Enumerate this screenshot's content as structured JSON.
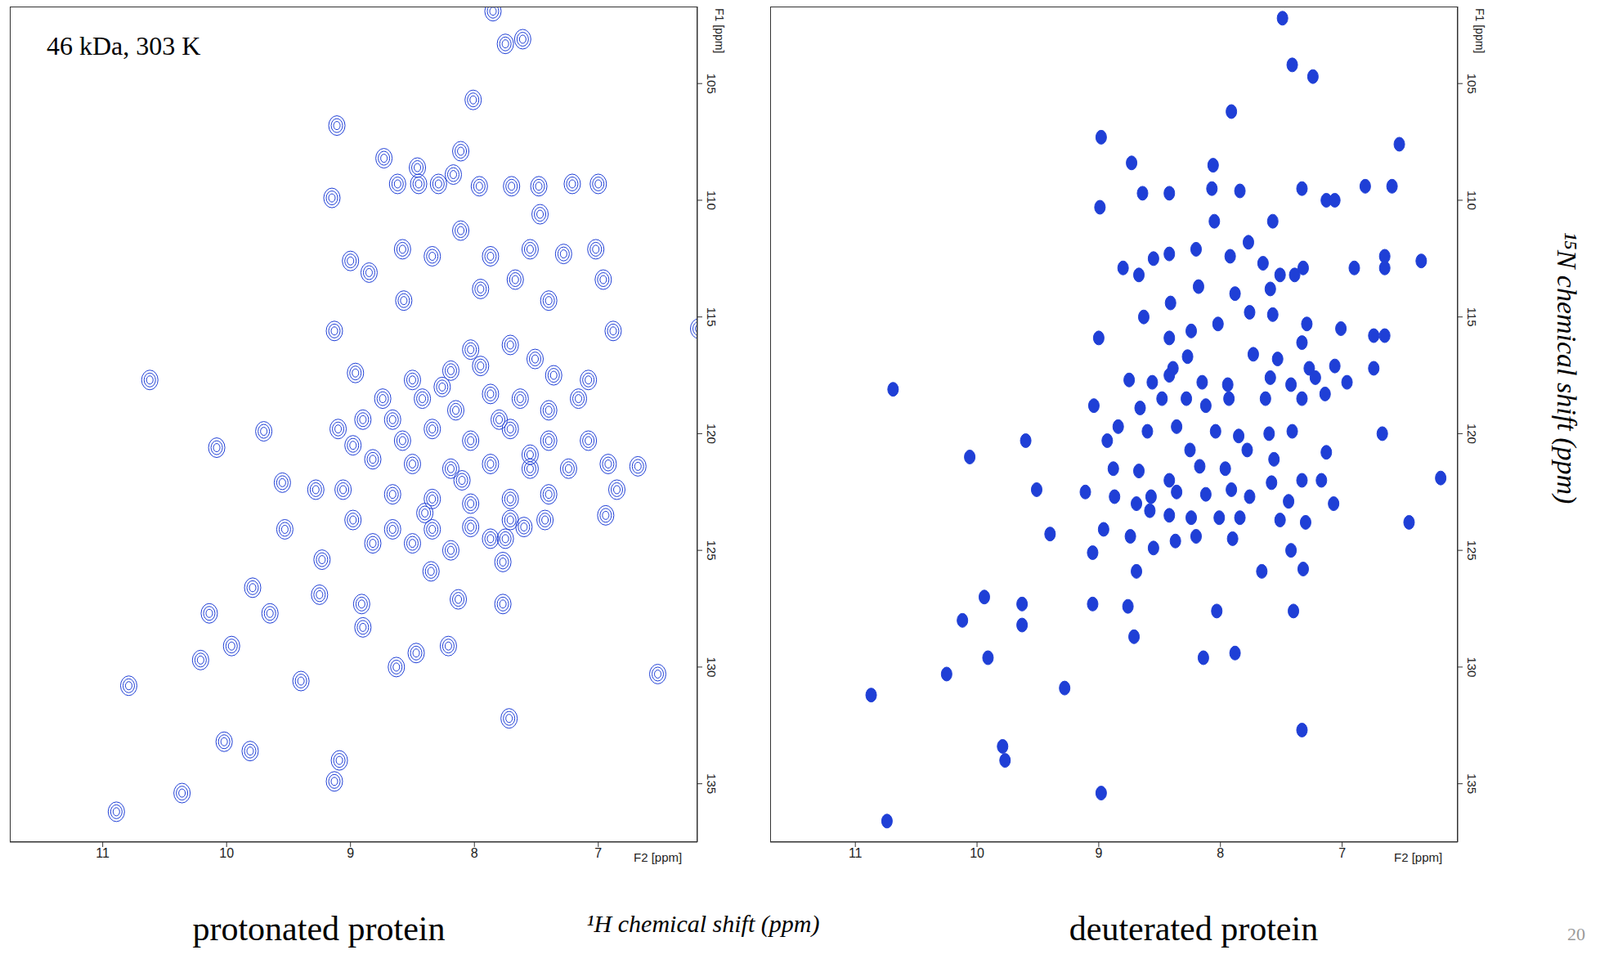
{
  "figure": {
    "xlabel": "¹H chemical shift (ppm)",
    "ylabel": "¹⁵N chemical shift (ppm)",
    "page_number": 20
  },
  "chart_data": [
    {
      "type": "scatter",
      "title": "protonated protein",
      "annotation": "46 kDa, 303 K",
      "xlabel": "F2 [ppm]",
      "ylabel": "F1 [ppm]",
      "color": "#1f3fd6",
      "marker": "contour",
      "xlim": [
        11.75,
        6.2
      ],
      "ylim": [
        137.5,
        101.7
      ],
      "xticks": [
        11,
        10,
        9,
        8,
        7
      ],
      "yticks": [
        105,
        110,
        115,
        120,
        125,
        130,
        135
      ],
      "x": [
        7.85,
        7.75,
        7.61,
        8.01,
        9.11,
        8.11,
        8.73,
        8.46,
        8.17,
        9.15,
        8.62,
        8.45,
        8.29,
        7.96,
        7.7,
        7.48,
        7.21,
        7.0,
        7.47,
        8.11,
        9.0,
        8.85,
        8.58,
        8.34,
        7.87,
        7.55,
        7.28,
        7.02,
        8.57,
        7.95,
        7.67,
        7.4,
        6.96,
        6.19,
        9.13,
        6.88,
        10.62,
        8.96,
        9.1,
        9.7,
        10.08,
        6.68,
        6.85,
        9.28,
        9.55,
        9.53,
        9.23,
        8.35,
        7.77,
        6.94,
        7.75,
        9.79,
        9.65,
        9.25,
        10.14,
        8.91,
        8.9,
        8.13,
        7.77,
        10.21,
        9.96,
        8.47,
        8.21,
        8.63,
        9.4,
        10.79,
        6.52,
        7.72,
        10.02,
        9.81,
        9.09,
        10.36,
        10.89,
        9.13,
        8.5,
        8.19,
        8.03,
        7.71,
        7.51,
        7.36,
        7.08,
        8.42,
        8.15,
        7.87,
        7.63,
        7.4,
        7.16,
        8.66,
        8.34,
        8.03,
        7.71,
        7.4,
        7.08,
        8.98,
        8.82,
        8.5,
        8.19,
        7.87,
        7.55,
        7.24,
        6.92,
        9.06,
        8.66,
        8.34,
        8.03,
        7.71,
        7.4,
        8.98,
        8.66,
        8.34,
        8.03,
        7.71,
        7.43,
        8.82,
        8.5,
        8.19,
        7.87,
        8.74,
        8.58,
        8.26,
        7.95,
        7.55,
        8.1,
        8.4,
        7.8,
        8.9,
        7.6
      ],
      "values": [
        101.9,
        103.3,
        103.1,
        105.7,
        106.8,
        107.9,
        108.2,
        108.6,
        108.9,
        109.9,
        109.3,
        109.3,
        109.3,
        109.4,
        109.4,
        109.4,
        109.3,
        109.3,
        110.6,
        111.3,
        112.6,
        113.1,
        112.1,
        112.4,
        112.4,
        112.1,
        112.3,
        112.1,
        114.3,
        113.8,
        113.4,
        114.3,
        113.4,
        115.5,
        115.6,
        115.6,
        117.7,
        117.4,
        119.8,
        119.9,
        120.6,
        121.4,
        122.4,
        122.4,
        122.1,
        124.1,
        125.4,
        125.9,
        125.5,
        123.5,
        124.5,
        126.6,
        127.7,
        126.9,
        127.7,
        127.3,
        128.3,
        127.1,
        127.3,
        129.7,
        129.1,
        129.4,
        129.1,
        130.0,
        130.6,
        130.8,
        130.3,
        132.2,
        133.2,
        133.6,
        134.0,
        135.4,
        136.2,
        134.9,
        117.7,
        117.3,
        116.4,
        116.2,
        116.8,
        117.5,
        117.7,
        118.5,
        119.0,
        118.3,
        118.5,
        119.0,
        118.5,
        119.4,
        119.8,
        120.3,
        119.8,
        120.3,
        120.3,
        120.5,
        121.1,
        121.3,
        121.5,
        121.3,
        121.5,
        121.5,
        121.3,
        122.4,
        122.6,
        122.8,
        123.0,
        122.8,
        122.6,
        123.7,
        124.1,
        124.1,
        124.0,
        123.7,
        123.7,
        124.7,
        124.7,
        125.0,
        124.5,
        118.5,
        120.3,
        118.0,
        117.1,
        120.9,
        122.0,
        123.4,
        119.4,
        119.4,
        124.0
      ]
    },
    {
      "type": "scatter",
      "title": "deuterated protein",
      "xlabel": "F2 [ppm]",
      "ylabel": "F1 [ppm]",
      "color": "#1f3fd6",
      "marker": "filled",
      "xlim": [
        11.7,
        6.05
      ],
      "ylim": [
        137.5,
        101.7
      ],
      "xticks": [
        11,
        10,
        9,
        8,
        7
      ],
      "yticks": [
        105,
        110,
        115,
        120,
        125,
        130,
        135
      ],
      "x": [
        7.49,
        7.41,
        7.24,
        7.91,
        8.98,
        6.53,
        8.06,
        8.73,
        8.42,
        8.64,
        8.99,
        8.07,
        7.84,
        7.33,
        7.13,
        7.06,
        6.81,
        6.59,
        7.57,
        8.05,
        7.77,
        8.8,
        8.55,
        8.42,
        8.2,
        7.92,
        7.65,
        7.51,
        7.39,
        7.32,
        6.9,
        6.65,
        6.65,
        6.35,
        8.67,
        8.41,
        8.18,
        7.88,
        7.59,
        8.63,
        9.0,
        8.24,
        8.02,
        7.76,
        7.57,
        7.29,
        7.01,
        6.74,
        6.65,
        8.42,
        8.27,
        8.39,
        7.73,
        7.53,
        7.33,
        7.27,
        7.06,
        6.74,
        8.75,
        8.56,
        8.42,
        8.15,
        7.94,
        7.59,
        7.42,
        7.22,
        6.96,
        10.69,
        9.04,
        8.66,
        8.48,
        8.28,
        8.12,
        7.93,
        7.63,
        7.33,
        7.14,
        8.84,
        8.6,
        8.36,
        8.04,
        7.85,
        7.6,
        7.41,
        9.6,
        10.06,
        8.93,
        8.25,
        7.78,
        7.56,
        7.13,
        6.67,
        9.51,
        9.11,
        8.88,
        8.67,
        8.42,
        8.17,
        7.96,
        7.58,
        7.33,
        7.17,
        6.19,
        8.87,
        8.69,
        8.57,
        8.36,
        8.12,
        7.91,
        7.76,
        7.44,
        7.07,
        8.58,
        8.42,
        8.24,
        8.01,
        7.84,
        7.51,
        7.3,
        6.45,
        9.4,
        8.96,
        8.74,
        8.55,
        8.37,
        8.2,
        7.9,
        9.05,
        8.69,
        7.42,
        7.66,
        7.32,
        9.94,
        9.63,
        9.05,
        8.76,
        8.03,
        7.4,
        10.12,
        9.63,
        8.71,
        9.91,
        8.14,
        7.88,
        10.25,
        9.28,
        10.87,
        7.33,
        9.79,
        9.77,
        8.98,
        10.74
      ],
      "values": [
        102.2,
        104.2,
        104.7,
        106.2,
        107.3,
        107.6,
        108.5,
        108.4,
        109.7,
        109.7,
        110.3,
        109.5,
        109.6,
        109.5,
        110.0,
        110.0,
        109.4,
        109.4,
        110.9,
        110.9,
        111.8,
        112.9,
        112.5,
        112.3,
        112.1,
        112.4,
        112.7,
        113.2,
        113.2,
        112.9,
        112.9,
        112.4,
        112.9,
        112.6,
        113.2,
        114.4,
        113.7,
        114.0,
        113.8,
        115.0,
        115.9,
        115.6,
        115.3,
        114.8,
        114.9,
        115.3,
        115.5,
        115.8,
        115.8,
        115.9,
        116.7,
        117.2,
        116.6,
        116.8,
        116.1,
        117.2,
        117.1,
        117.2,
        117.7,
        117.8,
        117.5,
        117.8,
        117.9,
        117.6,
        117.9,
        117.6,
        117.8,
        118.1,
        118.8,
        118.9,
        118.5,
        118.5,
        118.8,
        118.5,
        118.5,
        118.5,
        118.3,
        119.7,
        119.9,
        119.7,
        119.9,
        120.1,
        120.0,
        119.9,
        120.3,
        121.0,
        120.3,
        120.7,
        120.7,
        121.1,
        120.8,
        120.0,
        122.4,
        122.5,
        121.5,
        121.6,
        122.0,
        121.4,
        121.5,
        122.1,
        122.0,
        122.0,
        121.9,
        122.7,
        123.0,
        122.7,
        122.5,
        122.6,
        122.4,
        122.7,
        122.9,
        123.0,
        123.3,
        123.5,
        123.6,
        123.6,
        123.6,
        123.7,
        123.8,
        123.8,
        124.3,
        124.1,
        124.4,
        124.9,
        124.6,
        124.4,
        124.5,
        125.1,
        125.9,
        125.0,
        125.9,
        125.8,
        127.0,
        127.3,
        127.3,
        127.4,
        127.6,
        127.6,
        128.0,
        128.2,
        128.7,
        129.6,
        129.6,
        129.4,
        130.3,
        130.9,
        131.2,
        132.7,
        133.4,
        134.0,
        135.4,
        136.6
      ]
    }
  ]
}
